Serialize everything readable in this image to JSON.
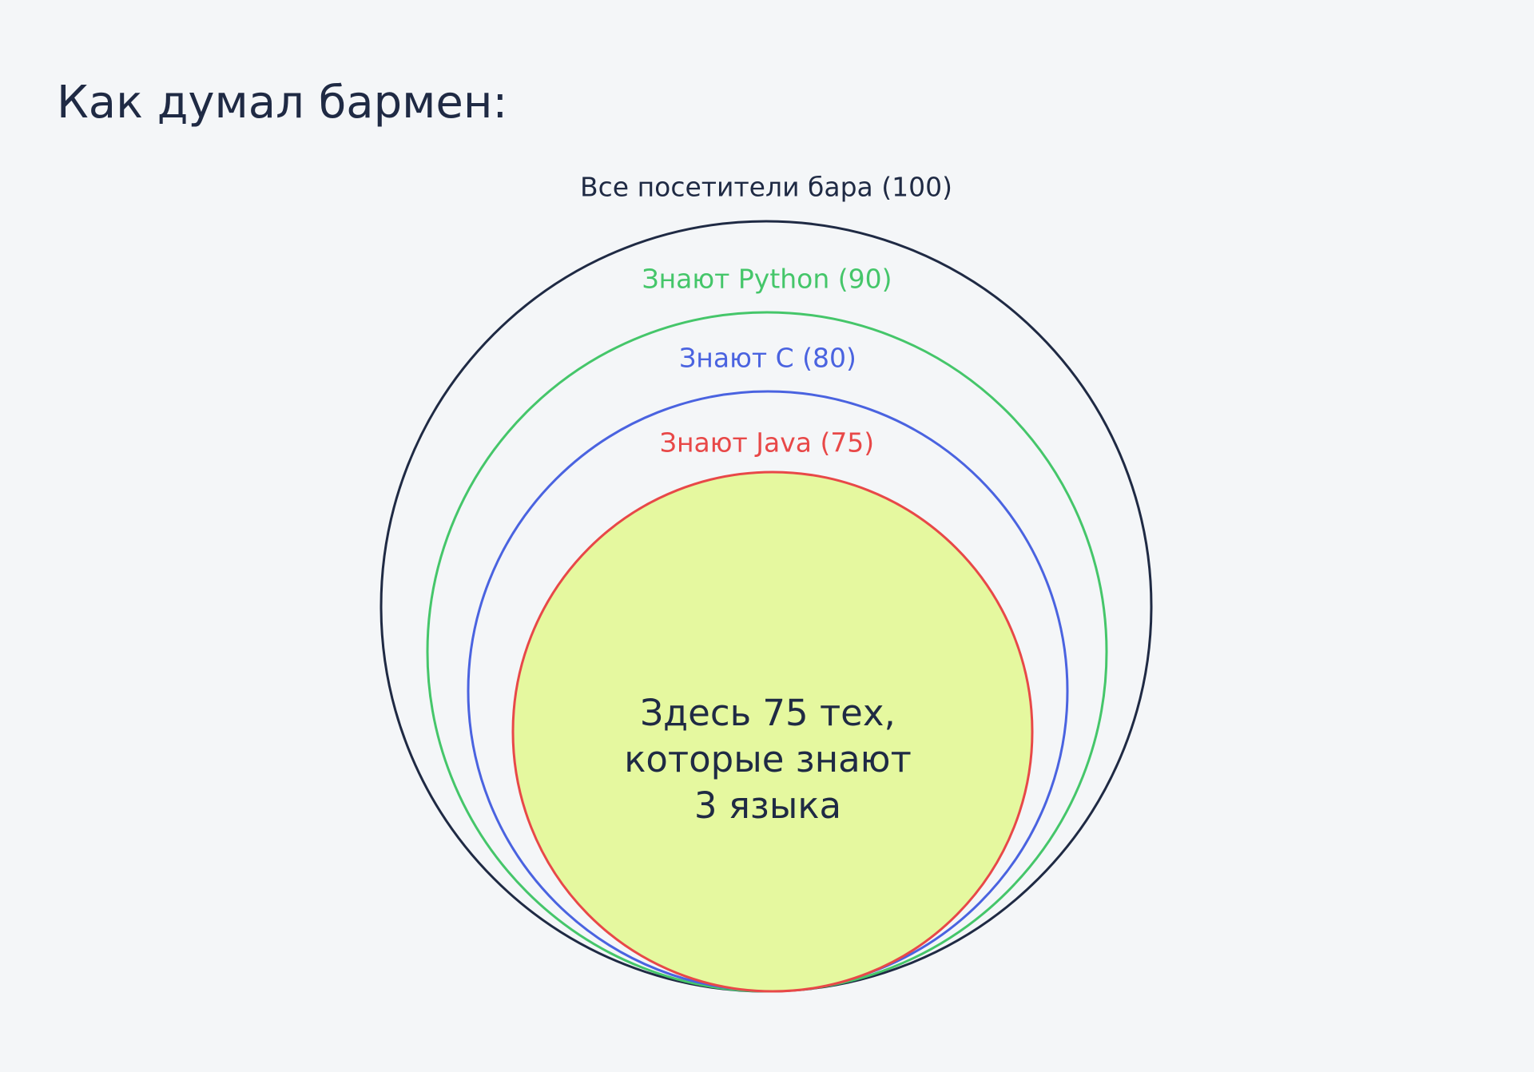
{
  "header": {
    "title": "Как думал бармен:"
  },
  "sets": [
    {
      "label": "Все посетители бара (100)"
    },
    {
      "label": "Знают Python (90)"
    },
    {
      "label": "Знают C (80)"
    },
    {
      "label": "Знают Java (75)"
    }
  ],
  "center_text": [
    "Здесь 75 тех,",
    "которые знают",
    "3 языка"
  ]
}
